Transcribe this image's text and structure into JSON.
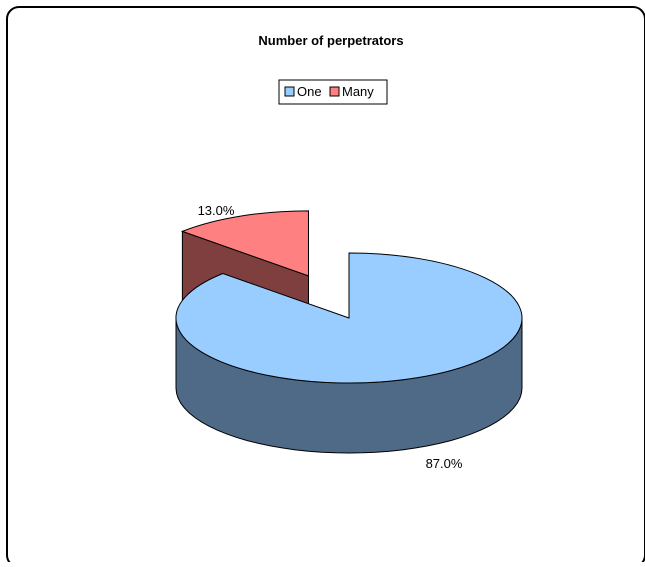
{
  "chart_data": {
    "type": "pie",
    "title": "Number of perpetrators",
    "categories": [
      "One",
      "Many"
    ],
    "values": [
      87.0,
      13.0
    ],
    "data_labels": [
      "87.0%",
      "13.0%"
    ],
    "colors": [
      "#99CCFF",
      "#FF8080"
    ],
    "side_colors": [
      "#4F6A86",
      "#7F3F3F"
    ],
    "exploded": [
      false,
      true
    ],
    "legend_position": "top",
    "style": "3d-exploded"
  }
}
